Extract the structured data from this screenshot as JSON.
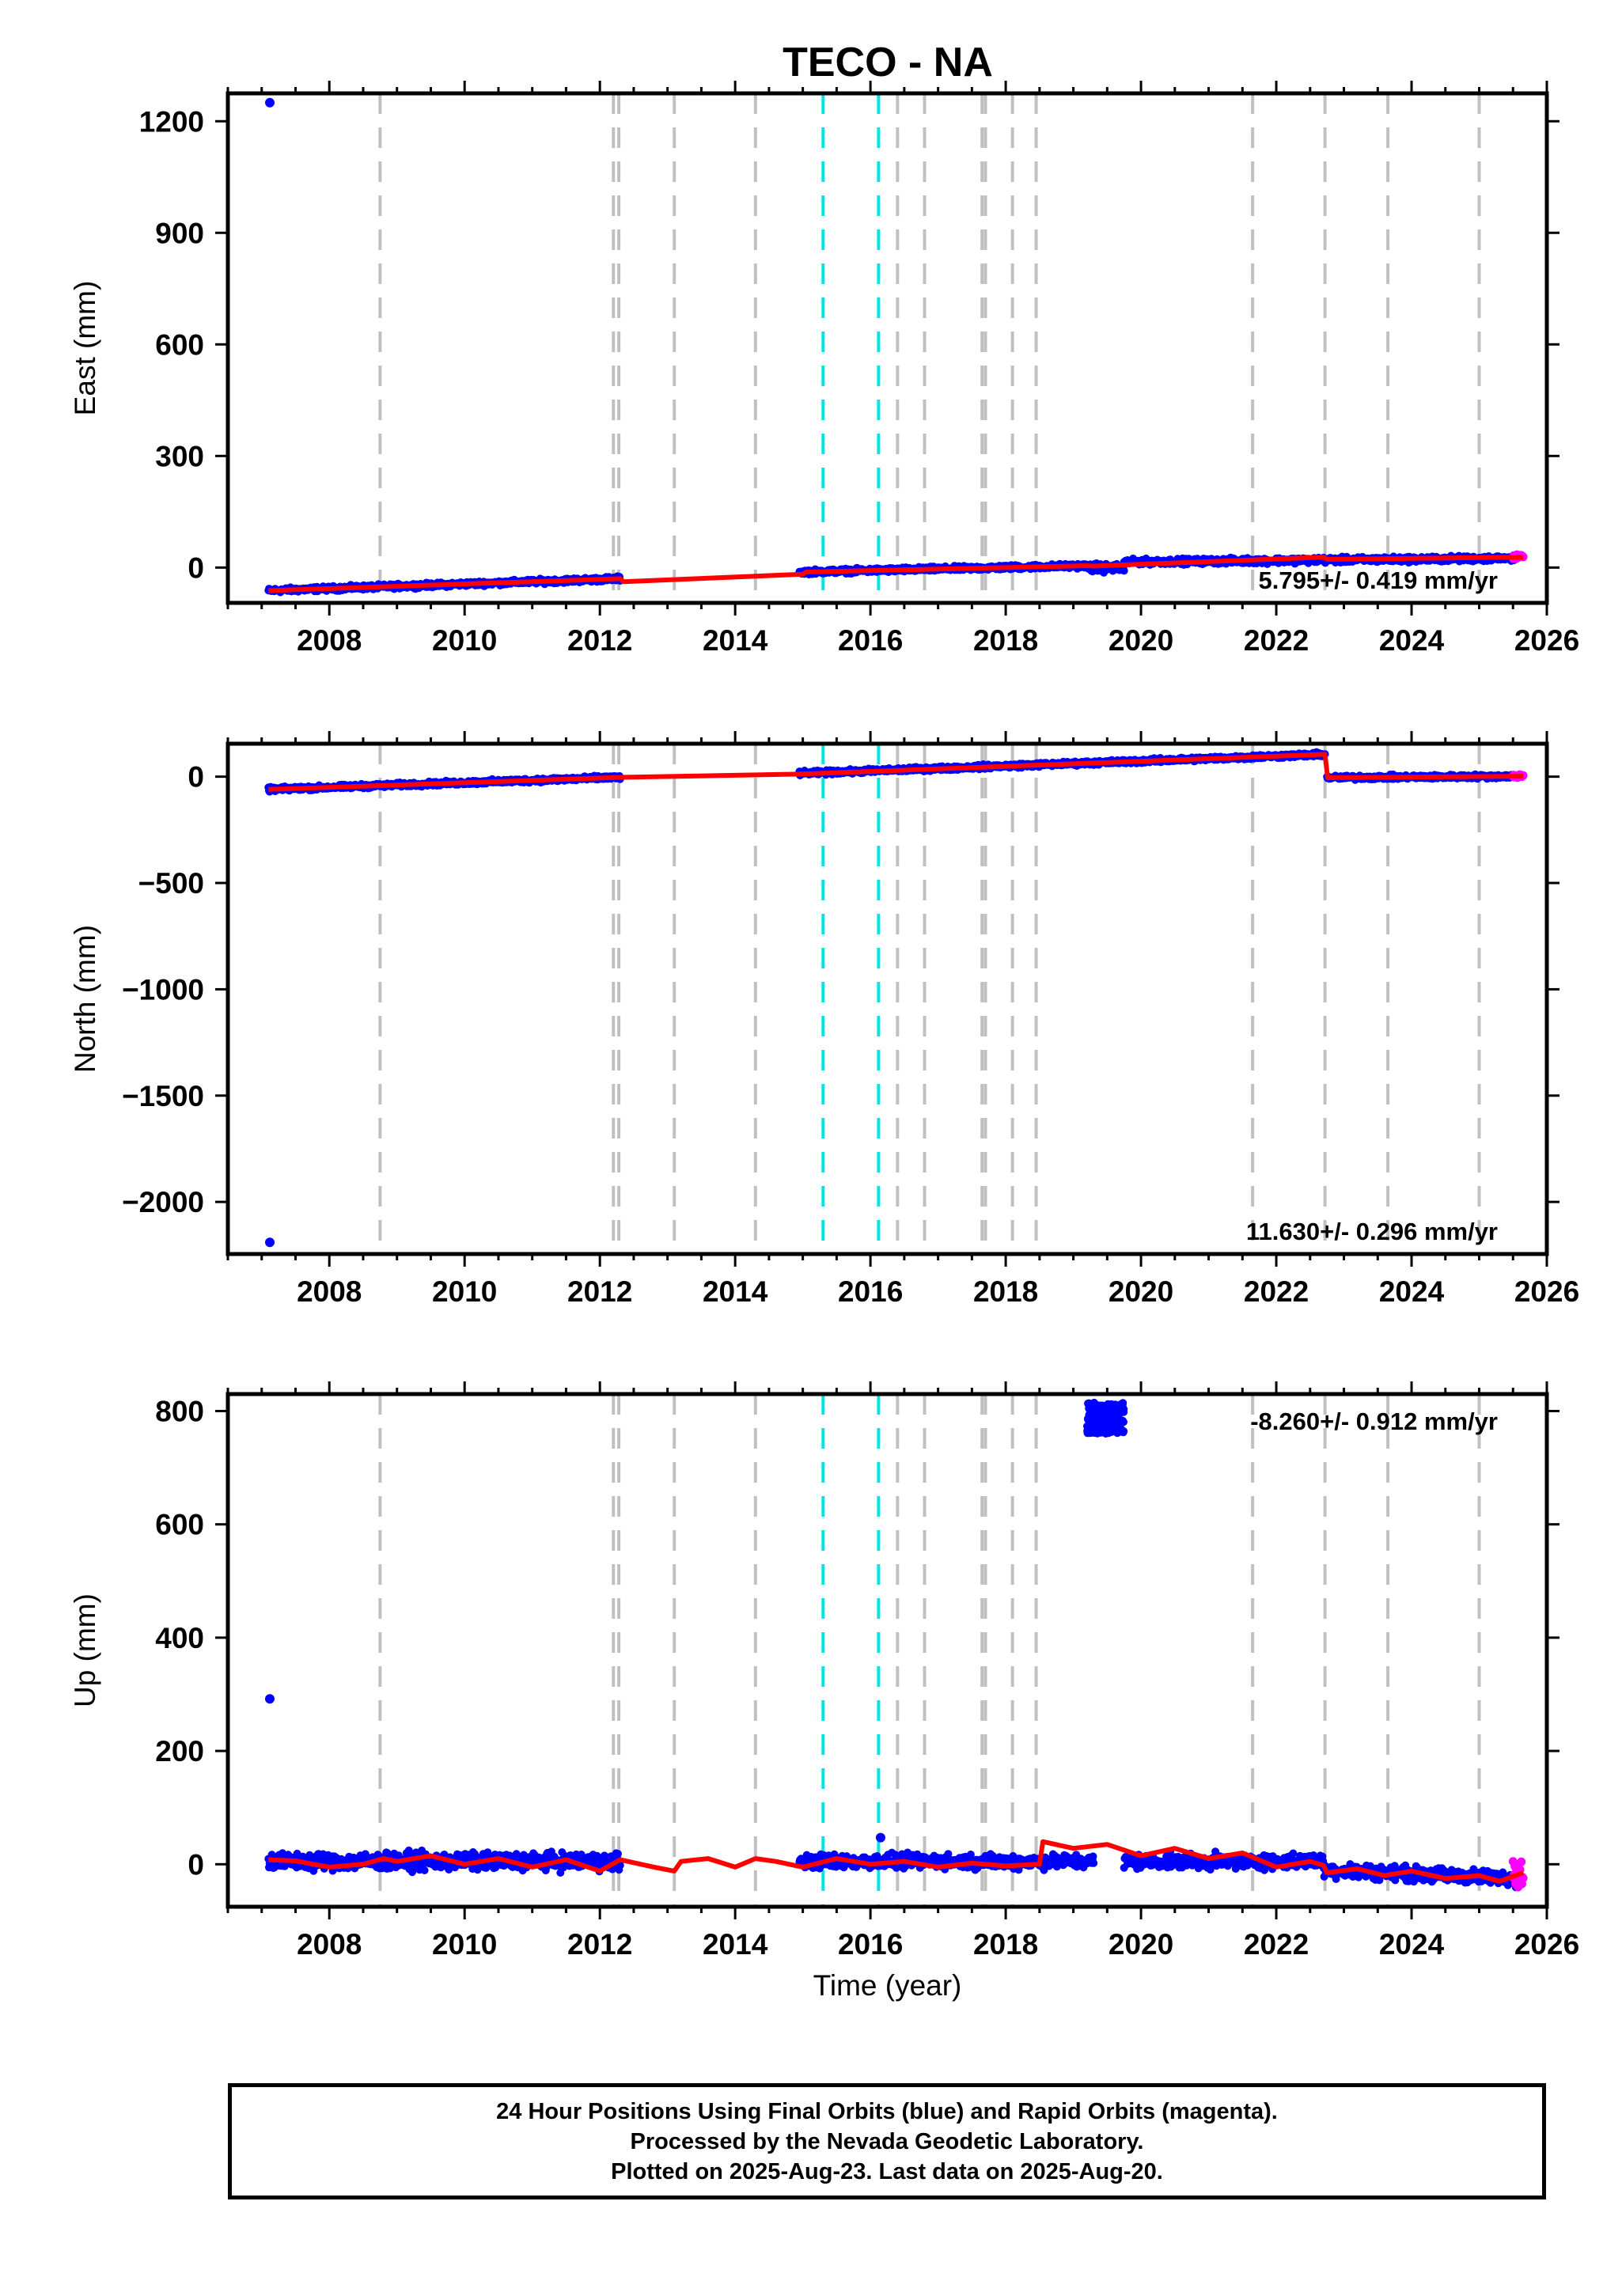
{
  "title": "TECO - NA",
  "caption": [
    "24 Hour Positions Using Final Orbits (blue) and Rapid Orbits (magenta).",
    "Processed by the Nevada Geodetic Laboratory.",
    "Plotted on 2025-Aug-23. Last data on 2025-Aug-20."
  ],
  "colors": {
    "final_orbits": "#0000ff",
    "rapid_orbits": "#ff00ff",
    "model": "#ff0000",
    "equipment_change": "#c0c0c0",
    "earthquake": "#00e5e5"
  },
  "chart_data": [
    {
      "type": "scatter",
      "name": "east",
      "ylabel": "East (mm)",
      "xlim": [
        2006.5,
        2026
      ],
      "ylim": [
        -95,
        1275
      ],
      "yticks": [
        0,
        300,
        600,
        900,
        1200
      ],
      "ytick_labels": [
        "0",
        "300",
        "600",
        "900",
        "1200"
      ],
      "xticks": [
        2008,
        2010,
        2012,
        2014,
        2016,
        2018,
        2020,
        2022,
        2024,
        2026
      ],
      "xtick_labels": [
        "2008",
        "2010",
        "2012",
        "2014",
        "2016",
        "2018",
        "2020",
        "2022",
        "2024",
        "2026"
      ],
      "rate_text": "5.795+/- 0.419 mm/yr",
      "rate_position": "bottom-right",
      "outliers": [
        {
          "x": 2007.12,
          "y": 1250
        }
      ],
      "final_segments": [
        {
          "start": 2007.1,
          "end": 2012.3,
          "y0": -62,
          "y1": -30,
          "noise": 5
        },
        {
          "start": 2014.95,
          "end": 2019.2,
          "y0": -12,
          "y1": 5,
          "noise": 5
        },
        {
          "start": 2019.2,
          "end": 2019.75,
          "y0": 0,
          "y1": -2,
          "noise": 9
        },
        {
          "start": 2019.75,
          "end": 2025.55,
          "y0": 15,
          "y1": 25,
          "noise": 6
        }
      ],
      "rapid_segments": [
        {
          "start": 2025.5,
          "end": 2025.65,
          "y0": 28,
          "y1": 30,
          "noise": 4
        }
      ],
      "model_line": [
        [
          2007.1,
          -62
        ],
        [
          2012.3,
          -30
        ],
        [
          2012.35,
          -38
        ],
        [
          2015.0,
          -18
        ],
        [
          2015.05,
          -12
        ],
        [
          2019.2,
          5
        ],
        [
          2019.3,
          4
        ],
        [
          2022.7,
          28
        ],
        [
          2022.75,
          22
        ],
        [
          2025.65,
          28
        ]
      ]
    },
    {
      "type": "scatter",
      "name": "north",
      "ylabel": "North (mm)",
      "xlim": [
        2006.5,
        2026
      ],
      "ylim": [
        -2245,
        155
      ],
      "yticks": [
        -2000,
        -1500,
        -1000,
        -500,
        0
      ],
      "ytick_labels": [
        "−2000",
        "−1500",
        "−1000",
        "−500",
        "0"
      ],
      "xticks": [
        2008,
        2010,
        2012,
        2014,
        2016,
        2018,
        2020,
        2022,
        2024,
        2026
      ],
      "xtick_labels": [
        "2008",
        "2010",
        "2012",
        "2014",
        "2016",
        "2018",
        "2020",
        "2022",
        "2024",
        "2026"
      ],
      "rate_text": "11.630+/- 0.296 mm/yr",
      "rate_position": "bottom-right",
      "outliers": [
        {
          "x": 2007.12,
          "y": -2190
        }
      ],
      "final_segments": [
        {
          "start": 2007.1,
          "end": 2012.3,
          "y0": -60,
          "y1": -3,
          "noise": 8
        },
        {
          "start": 2014.95,
          "end": 2022.72,
          "y0": 15,
          "y1": 105,
          "noise": 8
        },
        {
          "start": 2022.75,
          "end": 2025.55,
          "y0": -5,
          "y1": 2,
          "noise": 8
        }
      ],
      "rapid_segments": [
        {
          "start": 2025.5,
          "end": 2025.65,
          "y0": 3,
          "y1": 5,
          "noise": 6
        }
      ],
      "model_line": [
        [
          2007.1,
          -60
        ],
        [
          2012.3,
          -3
        ],
        [
          2014.95,
          12
        ],
        [
          2022.72,
          105
        ],
        [
          2022.76,
          -5
        ],
        [
          2025.65,
          2
        ]
      ]
    },
    {
      "type": "scatter",
      "name": "up",
      "ylabel": "Up (mm)",
      "xlabel": "Time (year)",
      "xlim": [
        2006.5,
        2026
      ],
      "ylim": [
        -75,
        830
      ],
      "yticks": [
        0,
        200,
        400,
        600,
        800
      ],
      "ytick_labels": [
        "0",
        "200",
        "400",
        "600",
        "800"
      ],
      "xticks": [
        2008,
        2010,
        2012,
        2014,
        2016,
        2018,
        2020,
        2022,
        2024,
        2026
      ],
      "xtick_labels": [
        "2008",
        "2010",
        "2012",
        "2014",
        "2016",
        "2018",
        "2020",
        "2022",
        "2024",
        "2026"
      ],
      "rate_text": "-8.260+/- 0.912 mm/yr",
      "rate_position": "top-right",
      "outliers": [
        {
          "x": 2007.12,
          "y": 292
        },
        {
          "x": 2016.15,
          "y": 47
        }
      ],
      "final_segments": [
        {
          "start": 2007.1,
          "end": 2012.3,
          "y0": 5,
          "y1": 5,
          "noise": 12
        },
        {
          "start": 2014.95,
          "end": 2019.3,
          "y0": 5,
          "y1": 5,
          "noise": 10
        },
        {
          "start": 2019.75,
          "end": 2022.7,
          "y0": 5,
          "y1": 5,
          "noise": 10
        },
        {
          "start": 2022.7,
          "end": 2025.55,
          "y0": -10,
          "y1": -25,
          "noise": 10
        }
      ],
      "cluster": {
        "start": 2019.2,
        "end": 2019.75,
        "y0": 760,
        "y1": 815
      },
      "rapid_segments": [
        {
          "start": 2025.5,
          "end": 2025.65,
          "y0": -20,
          "y1": -20,
          "noise": 18
        }
      ],
      "model_line": [
        [
          2007.1,
          8
        ],
        [
          2007.5,
          6
        ],
        [
          2008.0,
          -5
        ],
        [
          2008.5,
          0
        ],
        [
          2008.8,
          10
        ],
        [
          2009.0,
          5
        ],
        [
          2009.5,
          15
        ],
        [
          2010.0,
          0
        ],
        [
          2010.5,
          10
        ],
        [
          2011.0,
          -5
        ],
        [
          2011.5,
          8
        ],
        [
          2012.0,
          -12
        ],
        [
          2012.3,
          8
        ],
        [
          2012.8,
          -5
        ],
        [
          2013.1,
          -12
        ],
        [
          2013.2,
          5
        ],
        [
          2013.6,
          10
        ],
        [
          2014.0,
          -5
        ],
        [
          2014.3,
          10
        ],
        [
          2014.6,
          5
        ],
        [
          2015.0,
          -5
        ],
        [
          2015.5,
          10
        ],
        [
          2016.0,
          0
        ],
        [
          2016.5,
          5
        ],
        [
          2017.0,
          -5
        ],
        [
          2017.5,
          2
        ],
        [
          2018.0,
          -3
        ],
        [
          2018.5,
          0
        ],
        [
          2018.55,
          40
        ],
        [
          2019.0,
          28
        ],
        [
          2019.5,
          35
        ],
        [
          2020.0,
          15
        ],
        [
          2020.5,
          28
        ],
        [
          2021.0,
          10
        ],
        [
          2021.5,
          20
        ],
        [
          2022.0,
          -5
        ],
        [
          2022.5,
          5
        ],
        [
          2022.7,
          -2
        ],
        [
          2022.75,
          -15
        ],
        [
          2023.2,
          -8
        ],
        [
          2023.6,
          -20
        ],
        [
          2024.0,
          -12
        ],
        [
          2024.5,
          -25
        ],
        [
          2025.0,
          -20
        ],
        [
          2025.3,
          -30
        ],
        [
          2025.65,
          -15
        ]
      ]
    }
  ],
  "equipment_changes": [
    2008.75,
    2012.2,
    2012.28,
    2013.1,
    2014.3,
    2016.4,
    2016.8,
    2017.65,
    2017.7,
    2018.1,
    2018.45,
    2021.65,
    2022.72,
    2023.65,
    2025.0
  ],
  "earthquakes": [
    2015.3,
    2016.12
  ]
}
